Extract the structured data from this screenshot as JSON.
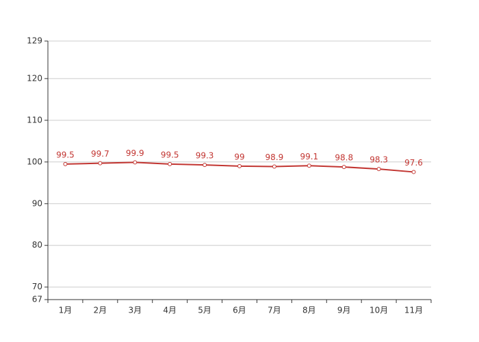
{
  "chart_data": {
    "type": "line",
    "categories": [
      "1月",
      "2月",
      "3月",
      "4月",
      "5月",
      "6月",
      "7月",
      "8月",
      "9月",
      "10月",
      "11月"
    ],
    "values": [
      99.5,
      99.7,
      99.9,
      99.5,
      99.3,
      99,
      98.9,
      99.1,
      98.8,
      98.3,
      97.6
    ],
    "color": "#c23531",
    "ylim": [
      67,
      129
    ],
    "yticks": [
      67,
      70,
      80,
      90,
      100,
      110,
      120,
      129
    ],
    "grid": true
  }
}
